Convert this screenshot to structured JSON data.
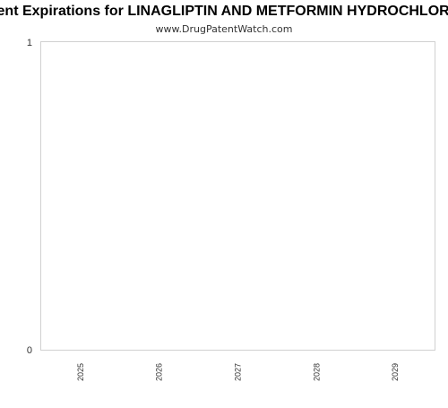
{
  "chart_data": {
    "type": "bar",
    "title": "Patent Expirations for LINAGLIPTIN AND METFORMIN HYDROCHLORIDE",
    "subtitle": "www.DrugPatentWatch.com",
    "categories": [
      "2025",
      "2026",
      "2027",
      "2028",
      "2029"
    ],
    "values": [
      0,
      0,
      0,
      0,
      0
    ],
    "xlabel": "",
    "ylabel": "",
    "ylim": [
      0,
      1
    ],
    "yticks": [
      "0",
      "1"
    ],
    "grid": false,
    "legend": "none",
    "colors": {
      "frame": "#d0d0d0",
      "axis": "#cccccc",
      "text": "#333333"
    }
  }
}
